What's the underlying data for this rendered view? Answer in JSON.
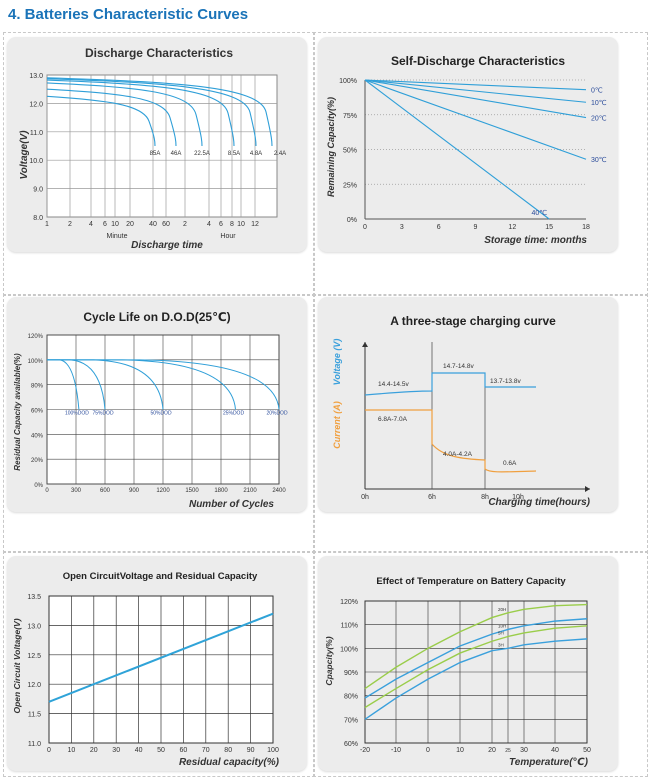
{
  "page": {
    "heading": "4.  Batteries Characteristic Curves"
  },
  "chart_data": [
    {
      "id": "discharge",
      "type": "line",
      "title": "Discharge Characteristics",
      "ylabel": "Voltage(V)",
      "xlabel": "Discharge time",
      "x_groups": [
        "Minute",
        "Hour"
      ],
      "yticks": [
        "13.0",
        "12.0",
        "11.0",
        "10.0",
        "9.0",
        "8.0"
      ],
      "xticks": [
        "1",
        "2",
        "4",
        "6",
        "10",
        "20",
        "40",
        "60",
        "2",
        "4",
        "6",
        "8",
        "10",
        "12"
      ],
      "ylim": [
        8,
        13
      ],
      "series": [
        {
          "name": "85A",
          "end_voltage": 10.5
        },
        {
          "name": "46A",
          "end_voltage": 10.5
        },
        {
          "name": "22.5A",
          "end_voltage": 10.5
        },
        {
          "name": "8.5A",
          "end_voltage": 10.5
        },
        {
          "name": "4.8A",
          "end_voltage": 10.5
        },
        {
          "name": "2.4A",
          "end_voltage": 10.5
        }
      ],
      "grid": true
    },
    {
      "id": "selfdischarge",
      "type": "line",
      "title": "Self-Discharge Characteristics",
      "ylabel": "Remaining Capacity(%)",
      "xlabel": "Storage time: months",
      "yticks": [
        "100%",
        "75%",
        "50%",
        "25%",
        "0%"
      ],
      "xticks": [
        "0",
        "3",
        "6",
        "9",
        "12",
        "15",
        "18"
      ],
      "xlim": [
        0,
        18
      ],
      "ylim": [
        0,
        100
      ],
      "series": [
        {
          "name": "0℃",
          "x": [
            0,
            18
          ],
          "y": [
            100,
            93
          ]
        },
        {
          "name": "10℃",
          "x": [
            0,
            18
          ],
          "y": [
            100,
            84
          ]
        },
        {
          "name": "20℃",
          "x": [
            0,
            18
          ],
          "y": [
            100,
            73
          ]
        },
        {
          "name": "30℃",
          "x": [
            0,
            18
          ],
          "y": [
            100,
            43
          ]
        },
        {
          "name": "40℃",
          "x": [
            0,
            15
          ],
          "y": [
            100,
            0
          ]
        }
      ],
      "grid": false
    },
    {
      "id": "cyclelife",
      "type": "line",
      "title": "Cycle Life on D.O.D(25℃)",
      "ylabel": "Residual Capacity available(%)",
      "xlabel": "Number of Cycles",
      "yticks": [
        "120%",
        "100%",
        "80%",
        "60%",
        "40%",
        "20%",
        "0%"
      ],
      "xticks": [
        "0",
        "300",
        "600",
        "900",
        "1200",
        "1500",
        "1800",
        "2100",
        "2400"
      ],
      "xlim": [
        0,
        2400
      ],
      "ylim": [
        0,
        120
      ],
      "series": [
        {
          "name": "100%DOD",
          "end_cycles": 330
        },
        {
          "name": "75%DOD",
          "end_cycles": 600
        },
        {
          "name": "50%DOD",
          "end_cycles": 1200
        },
        {
          "name": "25%DOD",
          "end_cycles": 1950
        },
        {
          "name": "20%DOD",
          "end_cycles": 2400
        }
      ],
      "grid": true
    },
    {
      "id": "charging",
      "type": "line",
      "title": "A three-stage charging curve",
      "ylabel_voltage": "Voltage (V)",
      "ylabel_current": "Current (A)",
      "xlabel": "Charging time(hours)",
      "xticks": [
        "0h",
        "6h",
        "8h",
        "10h"
      ],
      "annotations": [
        "14.4-14.5v",
        "14.7-14.8v",
        "13.7-13.8v",
        "6.8A-7.0A",
        "4.0A-4.2A",
        "0.6A"
      ],
      "colors": {
        "voltage": "#3aa0dc",
        "current": "#f0a040"
      },
      "grid": false
    },
    {
      "id": "ocv",
      "type": "line",
      "title": "Open CircuitVoltage and Residual Capacity",
      "ylabel": "Open Circuit Voltage(V)",
      "xlabel": "Residual capacity(%)",
      "yticks": [
        "13.5",
        "13.0",
        "12.5",
        "12.0",
        "11.5",
        "11.0"
      ],
      "xticks": [
        "0",
        "10",
        "20",
        "30",
        "40",
        "50",
        "60",
        "70",
        "80",
        "90",
        "100"
      ],
      "xlim": [
        0,
        100
      ],
      "ylim": [
        11,
        13.5
      ],
      "series": [
        {
          "name": "",
          "x": [
            0,
            100
          ],
          "y": [
            11.7,
            13.2
          ]
        }
      ],
      "grid": true
    },
    {
      "id": "temperature",
      "type": "line",
      "title": "Effect of Temperature on Battery Capacity",
      "ylabel": "Cpapcity(%)",
      "xlabel": "Temperature(℃)",
      "yticks": [
        "120%",
        "110%",
        "100%",
        "90%",
        "80%",
        "70%",
        "60%"
      ],
      "xticks": [
        "-20",
        "-10",
        "0",
        "10",
        "20",
        "25",
        "30",
        "40",
        "50"
      ],
      "xlim": [
        -20,
        50
      ],
      "ylim": [
        60,
        120
      ],
      "series": [
        {
          "name": "20H",
          "x": [
            -20,
            -10,
            0,
            10,
            20,
            25,
            30,
            40,
            50
          ],
          "y": [
            83,
            92,
            100,
            107,
            113,
            115,
            116.5,
            118,
            118.5
          ]
        },
        {
          "name": "10H",
          "x": [
            -20,
            -10,
            0,
            10,
            20,
            25,
            30,
            40,
            50
          ],
          "y": [
            79,
            87,
            94,
            101,
            106,
            108,
            109.5,
            111.5,
            112.5
          ]
        },
        {
          "name": "5H",
          "x": [
            -20,
            -10,
            0,
            10,
            20,
            25,
            30,
            40,
            50
          ],
          "y": [
            75,
            83,
            91,
            98,
            103,
            105,
            106.5,
            108.5,
            109.5
          ]
        },
        {
          "name": "3H",
          "x": [
            -20,
            -10,
            0,
            10,
            20,
            25,
            30,
            40,
            50
          ],
          "y": [
            70,
            79,
            87,
            94,
            99,
            100,
            101.5,
            103,
            104
          ]
        }
      ],
      "colors": [
        "#9acd4a",
        "#3aa0dc",
        "#9acd4a",
        "#3aa0dc"
      ],
      "grid": true
    }
  ]
}
